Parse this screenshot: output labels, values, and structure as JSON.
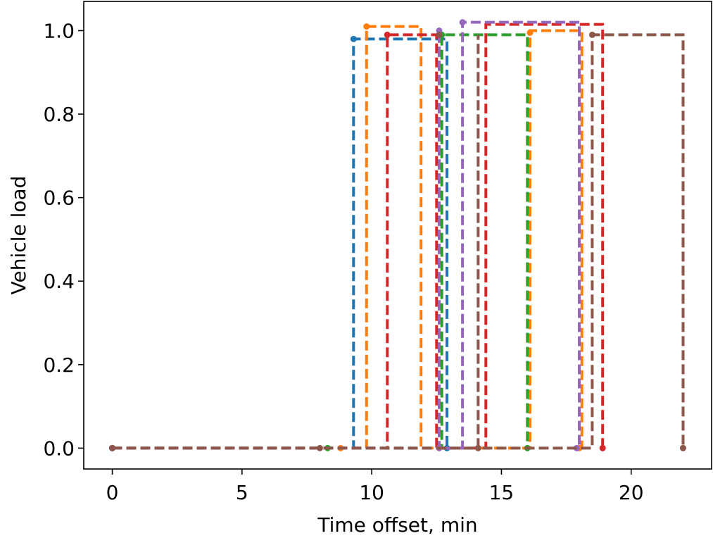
{
  "chart_data": {
    "type": "line",
    "title": "",
    "xlabel": "Time offset, min",
    "ylabel": "Vehicle load",
    "xlim": [
      -1.1,
      23.1
    ],
    "ylim": [
      -0.05,
      1.07
    ],
    "xticks": [
      0,
      5,
      10,
      15,
      20
    ],
    "xtick_labels": [
      "0",
      "5",
      "10",
      "15",
      "20"
    ],
    "yticks": [
      0.0,
      0.2,
      0.4,
      0.6,
      0.8,
      1.0
    ],
    "ytick_labels": [
      "0.0",
      "0.2",
      "0.4",
      "0.6",
      "0.8",
      "1.0"
    ],
    "grid": false,
    "legend": null,
    "series": [
      {
        "color": "#1f77b4",
        "steps": [
          [
            0,
            0
          ],
          [
            9.3,
            0
          ],
          [
            9.3,
            0.98
          ],
          [
            12.9,
            0.98
          ],
          [
            12.9,
            0
          ]
        ],
        "markers": [
          [
            0,
            0
          ],
          [
            9.3,
            0.98
          ],
          [
            12.9,
            0
          ]
        ]
      },
      {
        "color": "#ff7f0e",
        "steps": [
          [
            0,
            0
          ],
          [
            9.8,
            0
          ],
          [
            9.8,
            1.01
          ],
          [
            11.9,
            1.01
          ],
          [
            11.9,
            0
          ],
          [
            16.1,
            0
          ],
          [
            16.1,
            1.0
          ],
          [
            18.1,
            1.0
          ],
          [
            18.1,
            0
          ]
        ],
        "markers": [
          [
            0,
            0
          ],
          [
            8.8,
            0
          ],
          [
            9.8,
            1.01
          ],
          [
            16.1,
            0.995
          ],
          [
            18.0,
            0
          ]
        ]
      },
      {
        "color": "#2ca02c",
        "steps": [
          [
            0,
            0
          ],
          [
            12.7,
            0
          ],
          [
            12.7,
            0.99
          ],
          [
            16.0,
            0.99
          ],
          [
            16.0,
            0
          ]
        ],
        "markers": [
          [
            0,
            0
          ],
          [
            8.3,
            0
          ],
          [
            12.7,
            0.99
          ],
          [
            16.0,
            0
          ]
        ]
      },
      {
        "color": "#d62728",
        "steps": [
          [
            0,
            0
          ],
          [
            10.6,
            0
          ],
          [
            10.6,
            0.99
          ],
          [
            12.5,
            0.99
          ],
          [
            12.5,
            0
          ],
          [
            14.4,
            0
          ],
          [
            14.4,
            1.015
          ],
          [
            18.9,
            1.015
          ],
          [
            18.9,
            0
          ]
        ],
        "markers": [
          [
            0,
            0
          ],
          [
            10.6,
            0.99
          ],
          [
            18.9,
            0
          ]
        ]
      },
      {
        "color": "#9467bd",
        "steps": [
          [
            0,
            0
          ],
          [
            12.6,
            0
          ],
          [
            12.6,
            1.0
          ],
          [
            12.6,
            0
          ],
          [
            13.5,
            0
          ],
          [
            13.5,
            1.02
          ],
          [
            18.0,
            1.02
          ],
          [
            18.0,
            0
          ]
        ],
        "markers": [
          [
            0,
            0
          ],
          [
            12.6,
            1.0
          ],
          [
            12.6,
            0
          ],
          [
            13.5,
            1.02
          ],
          [
            17.9,
            0
          ]
        ]
      },
      {
        "color": "#8c564b",
        "steps": [
          [
            0,
            0
          ],
          [
            14.1,
            0
          ],
          [
            14.1,
            0.99
          ],
          [
            14.1,
            0
          ],
          [
            18.5,
            0
          ],
          [
            18.5,
            0.99
          ],
          [
            22.0,
            0.99
          ],
          [
            22.0,
            0
          ]
        ],
        "markers": [
          [
            0,
            0
          ],
          [
            8.0,
            0
          ],
          [
            12.6,
            0.99
          ],
          [
            14.1,
            0
          ],
          [
            18.5,
            0.99
          ],
          [
            22.0,
            0
          ]
        ]
      }
    ]
  }
}
